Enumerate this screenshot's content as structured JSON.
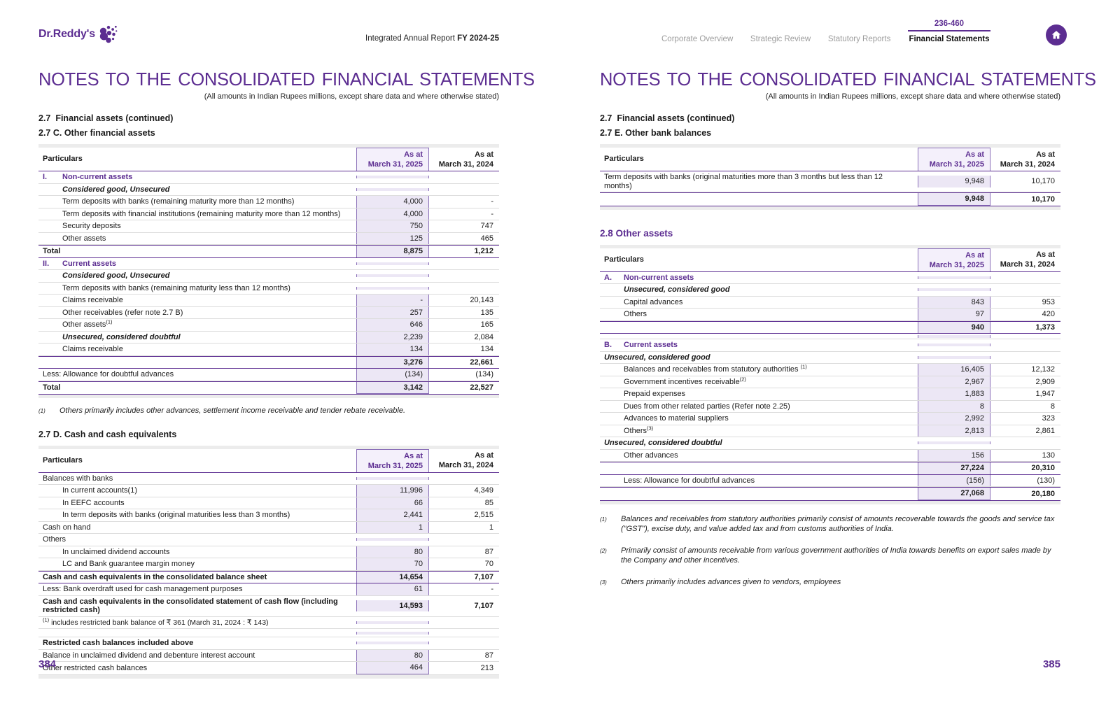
{
  "colors": {
    "accent": "#5c2d91",
    "highlight_fill": "#ece7f5",
    "highlight_border": "#8a6fb8"
  },
  "header": {
    "logo_text": "Dr.Reddy's",
    "report_title": "Integrated Annual Report ",
    "report_year": "FY 2024-25",
    "nav": [
      "Corporate Overview",
      "Strategic Review",
      "Statutory Reports",
      "Financial Statements"
    ],
    "active_nav": "Financial Statements",
    "page_range": "236-460"
  },
  "left_page": {
    "title": "NOTES TO THE CONSOLIDATED FINANCIAL STATEMENTS",
    "subtitle": "(All amounts in Indian Rupees millions, except share data and where otherwise stated)",
    "section_continued": "2.7  Financial assets (continued)",
    "section_c": "2.7 C. Other financial assets",
    "table_c": {
      "col_particulars": "Particulars",
      "col_2025": [
        "As at",
        "March 31, 2025"
      ],
      "col_2024": [
        "As at",
        "March 31, 2024"
      ],
      "rows": [
        {
          "c": "group",
          "p": "I.",
          "t": "Non-current assets"
        },
        {
          "c": "subhead",
          "i": 1,
          "t": "Considered good, Unsecured"
        },
        {
          "c": "item",
          "i": 1,
          "t": "Term deposits with banks (remaining maturity more than 12 months)",
          "v1": "4,000",
          "v2": "-"
        },
        {
          "c": "item",
          "i": 1,
          "t": "Term deposits with financial institutions (remaining maturity more than 12 months)",
          "v1": "4,000",
          "v2": "-"
        },
        {
          "c": "item",
          "i": 1,
          "t": "Security deposits",
          "v1": "750",
          "v2": "747"
        },
        {
          "c": "item",
          "i": 1,
          "t": "Other assets",
          "v1": "125",
          "v2": "465"
        },
        {
          "c": "total",
          "t": "Total",
          "v1": "8,875",
          "v2": "1,212"
        },
        {
          "c": "group",
          "p": "II.",
          "t": "Current assets"
        },
        {
          "c": "subhead",
          "i": 1,
          "t": "Considered good, Unsecured"
        },
        {
          "c": "item",
          "i": 1,
          "t": "Term deposits with banks (remaining maturity less than 12 months)",
          "v1": "",
          "v2": ""
        },
        {
          "c": "item",
          "i": 1,
          "t": "Claims receivable",
          "v1": "-",
          "v2": "20,143"
        },
        {
          "c": "item",
          "i": 1,
          "t": "Other receivables (refer note 2.7 B)",
          "v1": "257",
          "v2": "135"
        },
        {
          "c": "item",
          "i": 1,
          "t": "Other assets",
          "s": "(1)",
          "v1": "646",
          "v2": "165"
        },
        {
          "c": "subhead",
          "i": 1,
          "t": "Unsecured, considered doubtful",
          "v1": "2,239",
          "v2": "2,084"
        },
        {
          "c": "item",
          "i": 1,
          "t": "Claims receivable",
          "v1": "134",
          "v2": "134"
        },
        {
          "c": "subtotal",
          "t": "",
          "v1": "3,276",
          "v2": "22,661"
        },
        {
          "c": "flush",
          "t": "Less: Allowance for doubtful advances",
          "v1": "(134)",
          "v2": "(134)"
        },
        {
          "c": "total",
          "t": "Total",
          "v1": "3,142",
          "v2": "22,527"
        }
      ]
    },
    "footnote_c": {
      "marker": "(1)",
      "text": "Others primarily includes  other advances, settlement income receivable and tender rebate receivable."
    },
    "section_d": "2.7 D. Cash and cash equivalents",
    "table_d": {
      "col_particulars": "Particulars",
      "col_2025": [
        "As at",
        "March 31, 2025"
      ],
      "col_2024": [
        "As at",
        "March 31, 2024"
      ],
      "rows": [
        {
          "c": "flush",
          "t": "Balances with banks"
        },
        {
          "c": "item",
          "i": 1,
          "t": "In current accounts(1)",
          "v1": "11,996",
          "v2": "4,349"
        },
        {
          "c": "item",
          "i": 1,
          "t": "In EEFC accounts",
          "v1": "66",
          "v2": "85"
        },
        {
          "c": "item",
          "i": 1,
          "t": "In term deposits with banks (original maturities less than 3 months)",
          "v1": "2,441",
          "v2": "2,515"
        },
        {
          "c": "flush",
          "t": "Cash on hand",
          "v1": "1",
          "v2": "1"
        },
        {
          "c": "flush",
          "t": "Others"
        },
        {
          "c": "item",
          "i": 1,
          "t": "In unclaimed dividend accounts",
          "v1": "80",
          "v2": "87"
        },
        {
          "c": "item",
          "i": 1,
          "t": "LC and Bank guarantee margin money",
          "v1": "70",
          "v2": "70"
        },
        {
          "c": "total",
          "t": "Cash and cash equivalents in the consolidated balance sheet",
          "v1": "14,654",
          "v2": "7,107"
        },
        {
          "c": "flush",
          "t": "Less: Bank overdraft used for cash management purposes",
          "v1": "61",
          "v2": "-"
        },
        {
          "c": "boldrow",
          "t": "Cash and cash equivalents in the consolidated statement of cash flow (including restricted cash)",
          "v1": "14,593",
          "v2": "7,107"
        },
        {
          "c": "note",
          "sp": "(1)",
          "t": " includes restricted bank balance of ₹ 361 (March 31, 2024 : ₹ 143)"
        },
        {
          "c": "blank"
        },
        {
          "c": "boldflush",
          "t": "Restricted cash balances included above"
        },
        {
          "c": "flush",
          "t": "Balance in unclaimed dividend and debenture interest account",
          "v1": "80",
          "v2": "87"
        },
        {
          "c": "flush",
          "t": "Other restricted cash balances",
          "v1": "464",
          "v2": "213"
        }
      ]
    },
    "page_number": "384"
  },
  "right_page": {
    "title": "NOTES TO THE CONSOLIDATED FINANCIAL STATEMENTS",
    "subtitle": "(All amounts in Indian Rupees millions, except share data and where otherwise stated)",
    "section_continued": "2.7  Financial assets (continued)",
    "section_e": "2.7 E. Other bank balances",
    "table_e": {
      "col_particulars": "Particulars",
      "col_2025": [
        "As at",
        "March 31, 2025"
      ],
      "col_2024": [
        "As at",
        "March 31, 2024"
      ],
      "rows": [
        {
          "c": "flush",
          "t": "Term deposits with banks (original maturities more than 3 months but less than 12 months)",
          "v1": "9,948",
          "v2": "10,170"
        },
        {
          "c": "subtotal",
          "t": "",
          "v1": "9,948",
          "v2": "10,170"
        }
      ]
    },
    "section_28": "2.8 Other assets",
    "table_28": {
      "col_particulars": "Particulars",
      "col_2025": [
        "As at",
        "March 31, 2025"
      ],
      "col_2024": [
        "As at",
        "March 31, 2024"
      ],
      "rows": [
        {
          "c": "group",
          "p": "A.",
          "t": "Non-current assets"
        },
        {
          "c": "subhead",
          "i": 1,
          "t": "Unsecured, considered good"
        },
        {
          "c": "item",
          "i": 1,
          "t": "Capital advances",
          "v1": "843",
          "v2": "953"
        },
        {
          "c": "item",
          "i": 1,
          "t": "Others",
          "v1": "97",
          "v2": "420"
        },
        {
          "c": "subtotal",
          "t": "",
          "v1": "940",
          "v2": "1,373"
        },
        {
          "c": "gap"
        },
        {
          "c": "group",
          "p": "B.",
          "t": "Current assets"
        },
        {
          "c": "subhead",
          "i": 0,
          "t": "Unsecured, considered good"
        },
        {
          "c": "item",
          "i": 1,
          "t": "Balances and receivables from statutory authorities ",
          "s": "(1)",
          "v1": "16,405",
          "v2": "12,132"
        },
        {
          "c": "item",
          "i": 1,
          "t": "Government incentives receivable",
          "s": "(2)",
          "v1": "2,967",
          "v2": "2,909"
        },
        {
          "c": "item",
          "i": 1,
          "t": "Prepaid expenses",
          "v1": "1,883",
          "v2": "1,947"
        },
        {
          "c": "item",
          "i": 1,
          "t": "Dues from other related parties (Refer note 2.25)",
          "v1": "8",
          "v2": "8"
        },
        {
          "c": "item",
          "i": 1,
          "t": "Advances to material suppliers",
          "v1": "2,992",
          "v2": "323"
        },
        {
          "c": "item",
          "i": 1,
          "t": "Others",
          "s": "(3)",
          "v1": "2,813",
          "v2": "2,861"
        },
        {
          "c": "subhead",
          "i": 0,
          "t": "Unsecured, considered doubtful"
        },
        {
          "c": "item",
          "i": 1,
          "t": "Other advances",
          "v1": "156",
          "v2": "130"
        },
        {
          "c": "subtotal",
          "t": "",
          "v1": "27,224",
          "v2": "20,310"
        },
        {
          "c": "item",
          "i": 1,
          "t": "Less: Allowance for doubtful advances",
          "v1": "(156)",
          "v2": "(130)"
        },
        {
          "c": "subtotal",
          "t": "",
          "v1": "27,068",
          "v2": "20,180"
        }
      ]
    },
    "footnotes": [
      {
        "marker": "(1)",
        "text": "Balances and receivables from statutory authorities primarily consist of amounts recoverable towards the goods and service tax (\"GST\"), excise duty, and value added tax and from customs authorities of India."
      },
      {
        "marker": "(2)",
        "text": "Primarily consist of amounts receivable from various government authorities of India towards benefits on export sales made by the Company and other incentives."
      },
      {
        "marker": "(3)",
        "text": "Others primarily includes advances given to vendors, employees"
      }
    ],
    "page_number": "385"
  }
}
